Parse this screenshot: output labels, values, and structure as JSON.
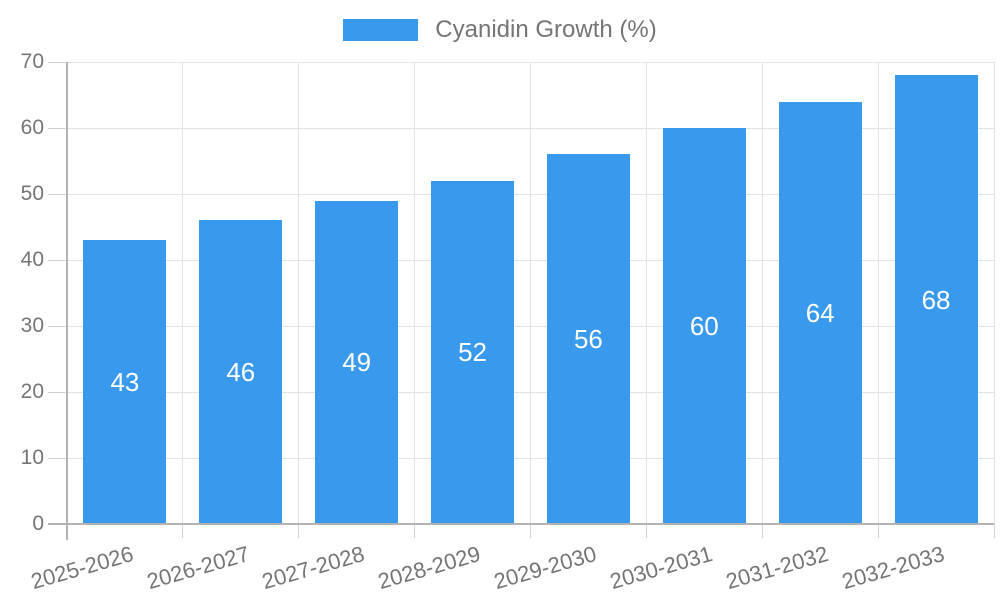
{
  "chart_data": {
    "type": "bar",
    "title": "",
    "categories": [
      "2025-2026",
      "2026-2027",
      "2027-2028",
      "2028-2029",
      "2029-2030",
      "2030-2031",
      "2031-2032",
      "2032-2033"
    ],
    "series": [
      {
        "name": "Cyanidin Growth (%)",
        "values": [
          43,
          46,
          49,
          52,
          56,
          60,
          64,
          68
        ]
      }
    ],
    "xlabel": "",
    "ylabel": "",
    "ylim": [
      0,
      70
    ],
    "yticks": [
      0,
      10,
      20,
      30,
      40,
      50,
      60,
      70
    ],
    "grid": "horizontal-and-vertical",
    "legend_position": "top-center",
    "value_labels": "inside-bar-center",
    "x_tick_label_rotation_deg": -16
  },
  "style": {
    "bar_color": "#3999ED",
    "axis_text_color": "#757575",
    "value_label_color": "#FFFFFF",
    "axis_line_color": "#B3B3B3",
    "gridline_color": "#E3E3E3",
    "tick_color": "#D2D2D2",
    "background_color": "#FFFFFF"
  }
}
